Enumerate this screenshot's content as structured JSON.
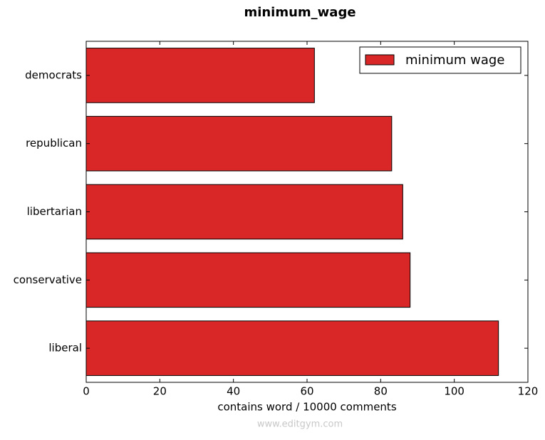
{
  "chart_data": {
    "type": "barh",
    "title": "minimum_wage",
    "categories": [
      "democrats",
      "republican",
      "libertarian",
      "conservative",
      "liberal"
    ],
    "series": [
      {
        "name": "minimum wage",
        "color": "#d92728",
        "values": [
          62,
          83,
          86,
          88,
          112
        ]
      }
    ],
    "xlabel": "contains word / 10000 comments",
    "xlim": [
      0,
      120
    ],
    "xticks": [
      0,
      20,
      40,
      60,
      80,
      100,
      120
    ],
    "legend": "upper right"
  },
  "watermark": "www.editgym.com"
}
